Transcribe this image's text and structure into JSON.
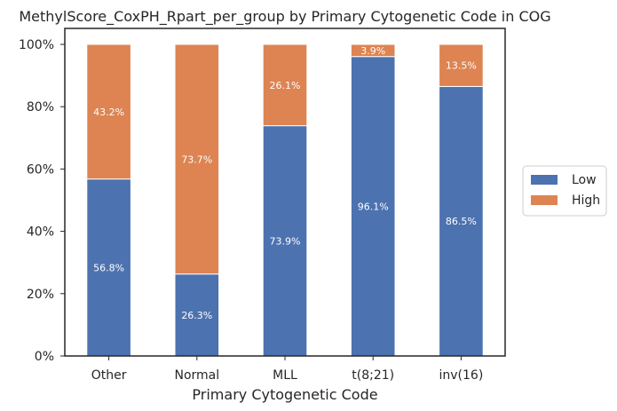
{
  "chart_data": {
    "type": "bar",
    "stacked": true,
    "title": "MethylScore_CoxPH_Rpart_per_group by Primary Cytogenetic Code in COG",
    "xlabel": "Primary Cytogenetic Code",
    "ylabel": "",
    "categories": [
      "Other",
      "Normal",
      "MLL",
      "t(8;21)",
      "inv(16)"
    ],
    "series": [
      {
        "name": "Low",
        "color": "#4c72b0",
        "values": [
          56.8,
          26.3,
          73.9,
          96.1,
          86.5
        ],
        "labels": [
          "56.8%",
          "26.3%",
          "73.9%",
          "96.1%",
          "86.5%"
        ]
      },
      {
        "name": "High",
        "color": "#dd8452",
        "values": [
          43.2,
          73.7,
          26.1,
          3.9,
          13.5
        ],
        "labels": [
          "43.2%",
          "73.7%",
          "26.1%",
          "3.9%",
          "13.5%"
        ]
      }
    ],
    "ylim": [
      0,
      100
    ],
    "yticks": [
      0,
      20,
      40,
      60,
      80,
      100
    ],
    "ytick_labels": [
      "0%",
      "20%",
      "40%",
      "60%",
      "80%",
      "100%"
    ],
    "grid": false,
    "legend_position": "right"
  }
}
